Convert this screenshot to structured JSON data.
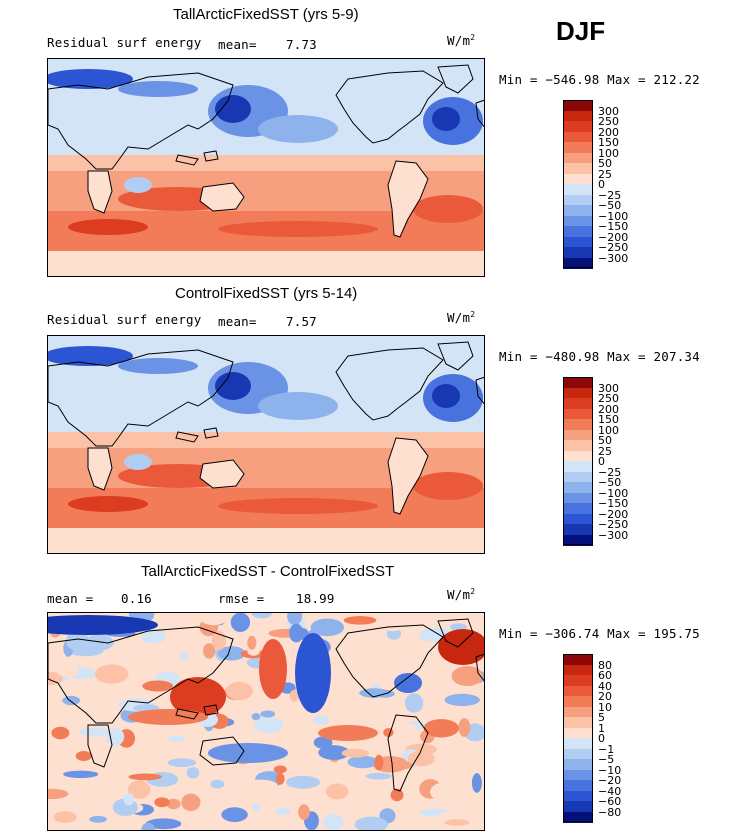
{
  "season_label": "DJF",
  "units_prefix": "W/m",
  "units_exponent": "2",
  "colors": {
    "pos": [
      "#fde0cf",
      "#fbc2a7",
      "#f7a07f",
      "#f27c57",
      "#ea5a3a",
      "#dc3d21",
      "#c7260f",
      "#8c0808"
    ],
    "neg": [
      "#d3e4f7",
      "#b2cdf2",
      "#8eb2ec",
      "#6a93e6",
      "#4872dd",
      "#2c55d4",
      "#1837b3",
      "#06107a"
    ]
  },
  "panels": [
    {
      "title": "TallArcticFixedSST (yrs 5-9)",
      "subtitle": "Residual surf energy",
      "mean_label": "mean=",
      "mean_value": "7.73",
      "minmax": "Min = −546.98 Max = 212.22",
      "chart_data": {
        "type": "heatmap",
        "title": "TallArcticFixedSST (yrs 5-9)",
        "field": "Residual surf energy",
        "mean": 7.73,
        "min": -546.98,
        "max": 212.22,
        "contour_levels": [
          300,
          250,
          200,
          150,
          100,
          50,
          25,
          0,
          -25,
          -50,
          -100,
          -150,
          -200,
          -250,
          -300
        ]
      },
      "legend_ticks": [
        "300",
        "250",
        "200",
        "150",
        "100",
        "50",
        "25",
        "0",
        "−25",
        "−50",
        "−100",
        "−150",
        "−200",
        "−250",
        "−300"
      ]
    },
    {
      "title": "ControlFixedSST (yrs 5-14)",
      "subtitle": "Residual surf energy",
      "mean_label": "mean=",
      "mean_value": "7.57",
      "minmax": "Min = −480.98 Max = 207.34",
      "chart_data": {
        "type": "heatmap",
        "title": "ControlFixedSST (yrs 5-14)",
        "field": "Residual surf energy",
        "mean": 7.57,
        "min": -480.98,
        "max": 207.34,
        "contour_levels": [
          300,
          250,
          200,
          150,
          100,
          50,
          25,
          0,
          -25,
          -50,
          -100,
          -150,
          -200,
          -250,
          -300
        ]
      },
      "legend_ticks": [
        "300",
        "250",
        "200",
        "150",
        "100",
        "50",
        "25",
        "0",
        "−25",
        "−50",
        "−100",
        "−150",
        "−200",
        "−250",
        "−300"
      ]
    },
    {
      "title": "TallArcticFixedSST - ControlFixedSST",
      "mean_label": "mean =",
      "mean_value": "0.16",
      "rmse_label": "rmse =",
      "rmse_value": "18.99",
      "minmax": "Min = −306.74 Max = 195.75",
      "chart_data": {
        "type": "heatmap",
        "title": "TallArcticFixedSST - ControlFixedSST",
        "mean": 0.16,
        "rmse": 18.99,
        "min": -306.74,
        "max": 195.75,
        "contour_levels": [
          80,
          60,
          40,
          20,
          10,
          5,
          1,
          0,
          -1,
          -5,
          -10,
          -20,
          -40,
          -60,
          -80
        ]
      },
      "legend_ticks": [
        "80",
        "60",
        "40",
        "20",
        "10",
        "5",
        "1",
        "0",
        "−1",
        "−5",
        "−10",
        "−20",
        "−40",
        "−60",
        "−80"
      ]
    }
  ]
}
